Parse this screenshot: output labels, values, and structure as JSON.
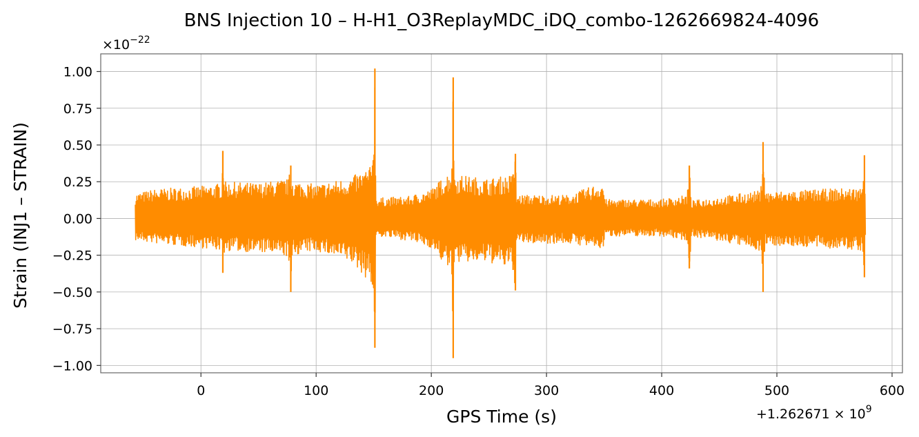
{
  "chart_data": {
    "type": "line",
    "title": "BNS Injection 10 – H-H1_O3ReplayMDC_iDQ_combo-1262669824-4096",
    "xlabel": "GPS Time (s)",
    "ylabel": "Strain (INJ1 – STRAIN)",
    "x_offset_label": "+1.262671 × 10",
    "x_offset_exponent": "9",
    "y_scale_label": "×10",
    "y_scale_exponent": "−22",
    "xlim": [
      -87,
      609
    ],
    "ylim": [
      -1.05,
      1.12
    ],
    "x_ticks": [
      0,
      100,
      200,
      300,
      400,
      500,
      600
    ],
    "x_tick_labels": [
      "0",
      "100",
      "200",
      "300",
      "400",
      "500",
      "600"
    ],
    "y_ticks": [
      1.0,
      0.75,
      0.5,
      0.25,
      0.0,
      -0.25,
      -0.5,
      -0.75,
      -1.0
    ],
    "y_tick_labels": [
      "1.00",
      "0.75",
      "0.50",
      "0.25",
      "0.00",
      "−0.25",
      "−0.50",
      "−0.75",
      "−1.00"
    ],
    "grid": true,
    "color": "#ff8c00",
    "series": [
      {
        "data_start": -57,
        "data_end": 577,
        "envelope": [
          [
            -57,
            0.17,
            -0.15
          ],
          [
            -40,
            0.2,
            -0.17
          ],
          [
            0,
            0.22,
            -0.2
          ],
          [
            18,
            0.24,
            -0.22
          ],
          [
            19,
            0.46,
            -0.37
          ],
          [
            21,
            0.25,
            -0.22
          ],
          [
            50,
            0.24,
            -0.23
          ],
          [
            76,
            0.27,
            -0.26
          ],
          [
            78,
            0.36,
            -0.5
          ],
          [
            80,
            0.26,
            -0.25
          ],
          [
            100,
            0.23,
            -0.22
          ],
          [
            130,
            0.28,
            -0.3
          ],
          [
            149,
            0.36,
            -0.45
          ],
          [
            151,
            1.02,
            -0.88
          ],
          [
            152,
            0.14,
            -0.12
          ],
          [
            180,
            0.15,
            -0.15
          ],
          [
            200,
            0.2,
            -0.2
          ],
          [
            218,
            0.34,
            -0.38
          ],
          [
            219,
            0.96,
            -0.95
          ],
          [
            220,
            0.3,
            -0.3
          ],
          [
            250,
            0.27,
            -0.3
          ],
          [
            271,
            0.3,
            -0.35
          ],
          [
            273,
            0.44,
            -0.49
          ],
          [
            274,
            0.16,
            -0.17
          ],
          [
            320,
            0.16,
            -0.17
          ],
          [
            349,
            0.25,
            -0.21
          ],
          [
            351,
            0.13,
            -0.12
          ],
          [
            400,
            0.13,
            -0.12
          ],
          [
            422,
            0.16,
            -0.15
          ],
          [
            424,
            0.36,
            -0.34
          ],
          [
            426,
            0.12,
            -0.12
          ],
          [
            460,
            0.16,
            -0.17
          ],
          [
            486,
            0.19,
            -0.22
          ],
          [
            488,
            0.52,
            -0.5
          ],
          [
            490,
            0.18,
            -0.18
          ],
          [
            540,
            0.2,
            -0.2
          ],
          [
            574,
            0.21,
            -0.22
          ],
          [
            576,
            0.43,
            -0.4
          ],
          [
            577,
            0.14,
            -0.12
          ]
        ]
      }
    ]
  }
}
